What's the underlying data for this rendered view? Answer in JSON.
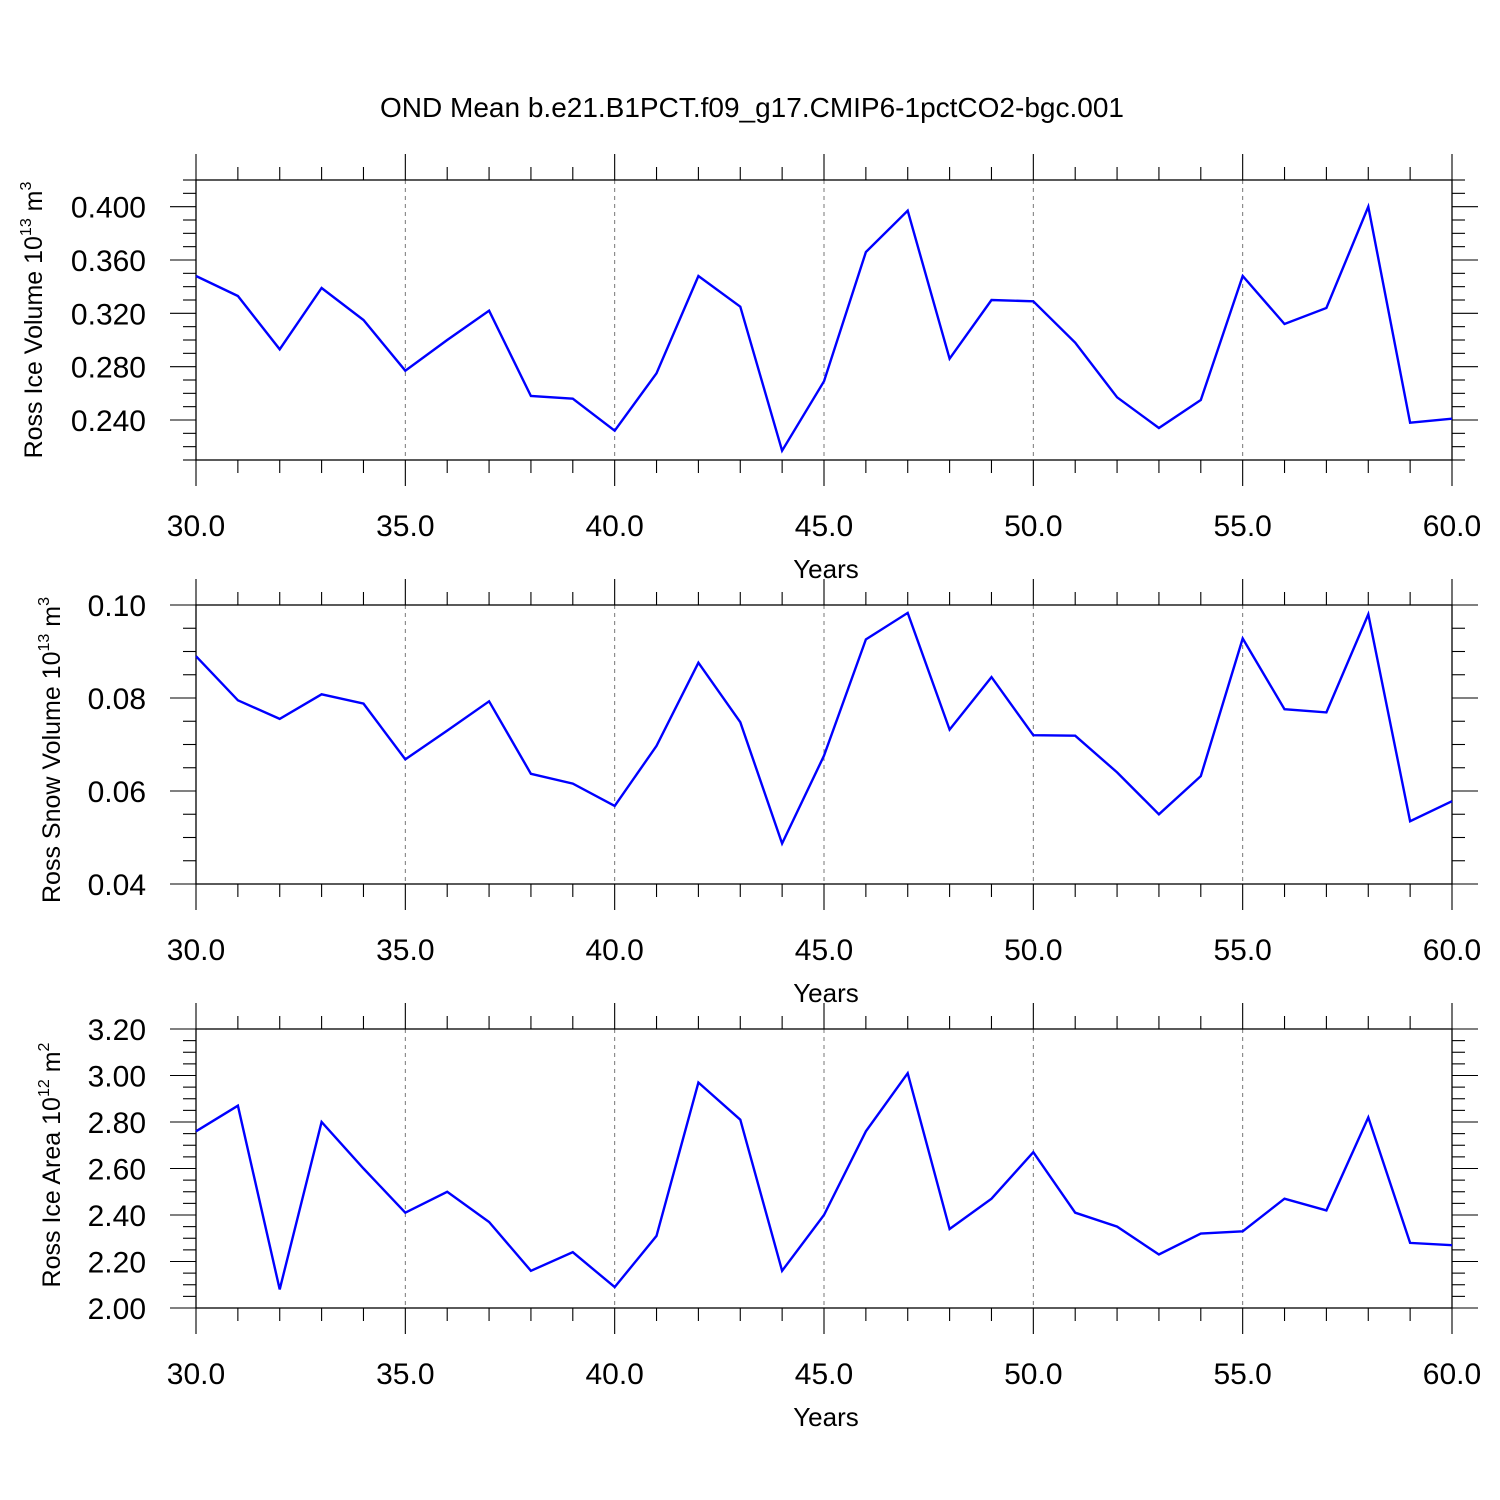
{
  "title": "OND Mean b.e21.B1PCT.f09_g17.CMIP6-1pctCO2-bgc.001",
  "colors": {
    "series": "#0000ff",
    "axis": "#000000",
    "grid": "#777777"
  },
  "chart_data": [
    {
      "type": "line",
      "ylabel_main": "Ross Ice Volume 10",
      "ylabel_sup": "13",
      "ylabel_unit": " m",
      "ylabel_unit_sup": "3",
      "xlabel": "Years",
      "xlim": [
        30,
        60
      ],
      "ylim": [
        0.21,
        0.42
      ],
      "xticks": [
        30,
        35,
        40,
        45,
        50,
        55,
        60
      ],
      "xtick_labels": [
        "30.0",
        "35.0",
        "40.0",
        "45.0",
        "50.0",
        "55.0",
        "60.0"
      ],
      "yticks": [
        0.24,
        0.28,
        0.32,
        0.36,
        0.4
      ],
      "ytick_labels": [
        "0.240",
        "0.280",
        "0.320",
        "0.360",
        "0.400"
      ],
      "yminor_step": 0.01,
      "grid": "vertical dashed at major x ticks",
      "x": [
        30,
        31,
        32,
        33,
        34,
        35,
        36,
        37,
        38,
        39,
        40,
        41,
        42,
        43,
        44,
        45,
        46,
        47,
        48,
        49,
        50,
        51,
        52,
        53,
        54,
        55,
        56,
        57,
        58,
        59,
        60
      ],
      "values": [
        0.348,
        0.333,
        0.293,
        0.339,
        0.315,
        0.277,
        0.3,
        0.322,
        0.258,
        0.256,
        0.232,
        0.275,
        0.348,
        0.325,
        0.217,
        0.269,
        0.366,
        0.397,
        0.286,
        0.33,
        0.329,
        0.298,
        0.257,
        0.234,
        0.255,
        0.348,
        0.312,
        0.324,
        0.4,
        0.238,
        0.241
      ]
    },
    {
      "type": "line",
      "ylabel_main": "Ross Snow Volume 10",
      "ylabel_sup": "13",
      "ylabel_unit": " m",
      "ylabel_unit_sup": "3",
      "xlabel": "Years",
      "xlim": [
        30,
        60
      ],
      "ylim": [
        0.04,
        0.1
      ],
      "xticks": [
        30,
        35,
        40,
        45,
        50,
        55,
        60
      ],
      "xtick_labels": [
        "30.0",
        "35.0",
        "40.0",
        "45.0",
        "50.0",
        "55.0",
        "60.0"
      ],
      "yticks": [
        0.04,
        0.06,
        0.08,
        0.1
      ],
      "ytick_labels": [
        "0.04",
        "0.06",
        "0.08",
        "0.10"
      ],
      "yminor_step": 0.005,
      "grid": "vertical dashed at major x ticks",
      "x": [
        30,
        31,
        32,
        33,
        34,
        35,
        36,
        37,
        38,
        39,
        40,
        41,
        42,
        43,
        44,
        45,
        46,
        47,
        48,
        49,
        50,
        51,
        52,
        53,
        54,
        55,
        56,
        57,
        58,
        59,
        60
      ],
      "values": [
        0.089,
        0.0795,
        0.0755,
        0.0808,
        0.0788,
        0.0668,
        0.073,
        0.0793,
        0.0637,
        0.0616,
        0.0568,
        0.0697,
        0.0876,
        0.0748,
        0.0487,
        0.0676,
        0.0926,
        0.0983,
        0.0732,
        0.0845,
        0.072,
        0.0719,
        0.064,
        0.055,
        0.0632,
        0.0928,
        0.0776,
        0.0769,
        0.098,
        0.0535,
        0.0578
      ]
    },
    {
      "type": "line",
      "ylabel_main": "Ross Ice Area 10",
      "ylabel_sup": "12",
      "ylabel_unit": " m",
      "ylabel_unit_sup": "2",
      "xlabel": "Years",
      "xlim": [
        30,
        60
      ],
      "ylim": [
        2.0,
        3.2
      ],
      "xticks": [
        30,
        35,
        40,
        45,
        50,
        55,
        60
      ],
      "xtick_labels": [
        "30.0",
        "35.0",
        "40.0",
        "45.0",
        "50.0",
        "55.0",
        "60.0"
      ],
      "yticks": [
        2.0,
        2.2,
        2.4,
        2.6,
        2.8,
        3.0,
        3.2
      ],
      "ytick_labels": [
        "2.00",
        "2.20",
        "2.40",
        "2.60",
        "2.80",
        "3.00",
        "3.20"
      ],
      "yminor_step": 0.05,
      "grid": "vertical dashed at major x ticks",
      "x": [
        30,
        31,
        32,
        33,
        34,
        35,
        36,
        37,
        38,
        39,
        40,
        41,
        42,
        43,
        44,
        45,
        46,
        47,
        48,
        49,
        50,
        51,
        52,
        53,
        54,
        55,
        56,
        57,
        58,
        59,
        60
      ],
      "values": [
        2.76,
        2.87,
        2.08,
        2.8,
        2.6,
        2.41,
        2.5,
        2.37,
        2.16,
        2.24,
        2.09,
        2.31,
        2.97,
        2.81,
        2.16,
        2.4,
        2.76,
        3.01,
        2.34,
        2.47,
        2.67,
        2.41,
        2.35,
        2.23,
        2.32,
        2.33,
        2.47,
        2.42,
        2.82,
        2.28,
        2.27
      ]
    }
  ]
}
